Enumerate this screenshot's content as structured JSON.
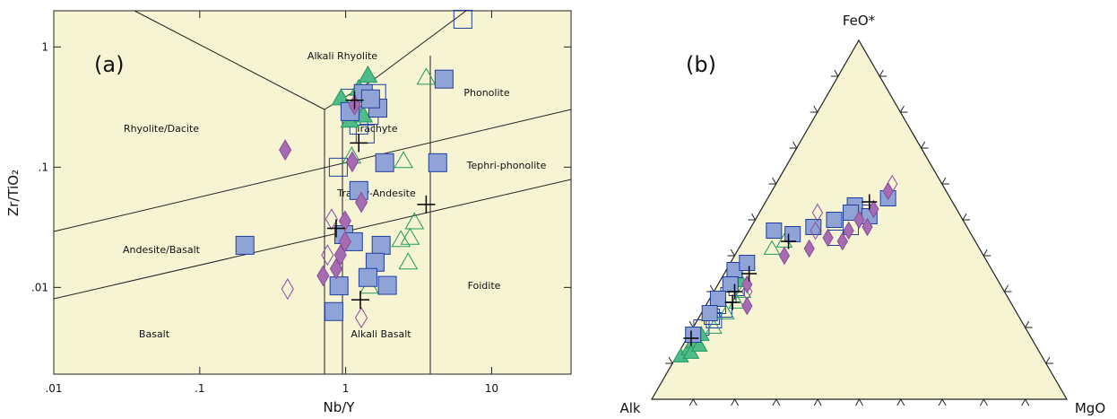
{
  "chart_data": [
    {
      "type": "scatter",
      "xlabel": "Nb/Y",
      "ylabel": "Zr/TiO₂",
      "log_x": true,
      "log_y": true,
      "background": "#f7f4d4",
      "xlim": [
        0.01,
        35
      ],
      "ylim": [
        0.0019,
        2
      ],
      "xticks": [
        {
          "value": 0.01,
          "label": ".01"
        },
        {
          "value": 0.1,
          "label": ".1"
        },
        1,
        10
      ],
      "yticks": [
        {
          "value": 0.01,
          "label": ".01"
        },
        {
          "value": 0.1,
          "label": ".1"
        },
        1
      ],
      "annotations": [
        "(a)",
        "Alkali Rhyolite",
        "Rhyolite/Dacite",
        "Phonolite",
        "Trachyte",
        "Tephri-phonolite",
        "Trachy-Andesite",
        "Andesite/Basalt",
        "Foidite",
        "Basalt",
        "Alkali Basalt"
      ],
      "series": [
        {
          "marker": "square",
          "filled": false,
          "color": "#1f3f9e",
          "x": [
            6.35,
            0.89,
            1.07,
            1.23,
            1.45,
            1.63,
            1.36
          ],
          "values": [
            1.7,
            0.1,
            0.375,
            0.224,
            0.27,
            0.41,
            0.189
          ]
        },
        {
          "marker": "triangle",
          "filled": false,
          "color": "#1f9a5a",
          "x": [
            3.56,
            2.49,
            2.96,
            2.76,
            2.39,
            2.68,
            1.1,
            1.45
          ],
          "values": [
            0.557,
            0.113,
            0.035,
            0.026,
            0.0249,
            0.0162,
            0.123,
            0.0102
          ]
        },
        {
          "marker": "triangle",
          "filled": true,
          "color": "#4fba8a",
          "x": [
            1.42,
            1.23,
            0.93,
            1.07,
            1.32
          ],
          "values": [
            0.58,
            0.45,
            0.375,
            0.245,
            0.27
          ]
        },
        {
          "marker": "square",
          "filled": true,
          "color": "#8fa3d6",
          "x": [
            4.72,
            4.27,
            1.85,
            1.23,
            0.204,
            0.97,
            1.13,
            1.75,
            1.59,
            1.42,
            0.9,
            1.93,
            0.83,
            1.32,
            1.07,
            1.66,
            1.48
          ],
          "values": [
            0.54,
            0.109,
            0.109,
            0.064,
            0.0224,
            0.0275,
            0.024,
            0.0224,
            0.0162,
            0.0121,
            0.0103,
            0.0104,
            0.0063,
            0.41,
            0.29,
            0.31,
            0.37
          ]
        },
        {
          "marker": "diamond",
          "filled": false,
          "color": "#8a4d9a",
          "x": [
            0.4,
            1.28,
            0.8,
            0.75
          ],
          "values": [
            0.0097,
            0.0056,
            0.037,
            0.0186
          ]
        },
        {
          "marker": "diamond",
          "filled": true,
          "color": "#a56cb1",
          "x": [
            0.385,
            1.11,
            1.28,
            0.99,
            0.99,
            0.92,
            0.86,
            0.7,
            1.15
          ],
          "values": [
            0.139,
            0.111,
            0.051,
            0.0357,
            0.024,
            0.0186,
            0.0143,
            0.0125,
            0.33
          ]
        },
        {
          "marker": "cross",
          "filled": false,
          "color": "#000000",
          "x": [
            1.23,
            3.56,
            0.86,
            1.26,
            1.15
          ],
          "values": [
            0.159,
            0.049,
            0.031,
            0.0079,
            0.36
          ]
        }
      ]
    },
    {
      "type": "ternary",
      "annotations": [
        "(b)"
      ],
      "top_label": "FeO*",
      "left_label": "Alk",
      "right_label": "MgO",
      "background": "#f7f4d4",
      "series": [
        {
          "marker": "square",
          "filled": false,
          "color": "#1f3f9e",
          "feo": [
            20,
            23,
            26,
            29,
            31,
            25,
            22,
            45,
            48,
            52
          ],
          "mgo": [
            2,
            3,
            3,
            4,
            5,
            5,
            4,
            22,
            24,
            25
          ],
          "alk": [
            78,
            74,
            71,
            67,
            64,
            70,
            74,
            33,
            28,
            23
          ]
        },
        {
          "marker": "triangle",
          "filled": false,
          "color": "#1f9a5a",
          "feo": [
            24,
            27,
            30,
            42,
            44,
            20
          ],
          "mgo": [
            6,
            7,
            7,
            8,
            10,
            5
          ],
          "alk": [
            70,
            66,
            63,
            50,
            46,
            75
          ]
        },
        {
          "marker": "triangle",
          "filled": true,
          "color": "#4fba8a",
          "feo": [
            12,
            14,
            16,
            13,
            18,
            15,
            33
          ],
          "mgo": [
            1,
            2,
            2,
            3,
            3,
            4,
            5
          ],
          "alk": [
            87,
            84,
            82,
            84,
            79,
            81,
            62
          ]
        },
        {
          "marker": "square",
          "filled": true,
          "color": "#8fa3d6",
          "feo": [
            18,
            36,
            38,
            47,
            46,
            48,
            50,
            54,
            56,
            51,
            52,
            32,
            28,
            24
          ],
          "mgo": [
            1,
            2,
            4,
            6,
            11,
            15,
            19,
            22,
            29,
            27,
            22,
            3,
            2,
            2
          ],
          "alk": [
            81,
            62,
            58,
            47,
            43,
            37,
            31,
            24,
            15,
            22,
            26,
            65,
            70,
            74
          ]
        },
        {
          "marker": "diamond",
          "filled": false,
          "color": "#8a4d9a",
          "feo": [
            60,
            52,
            47,
            30
          ],
          "mgo": [
            28,
            14,
            16,
            8
          ],
          "alk": [
            12,
            34,
            37,
            62
          ]
        },
        {
          "marker": "diamond",
          "filled": true,
          "color": "#a56cb1",
          "feo": [
            40,
            42,
            45,
            44,
            47,
            50,
            53,
            58,
            48,
            26,
            32
          ],
          "mgo": [
            12,
            17,
            20,
            24,
            24,
            25,
            27,
            28,
            28,
            10,
            7
          ],
          "alk": [
            48,
            41,
            35,
            32,
            29,
            25,
            20,
            14,
            24,
            64,
            61
          ]
        },
        {
          "marker": "cross",
          "filled": false,
          "color": "#000000",
          "feo": [
            17,
            35,
            27,
            30,
            55,
            44
          ],
          "mgo": [
            1,
            6,
            6,
            5,
            25,
            11
          ],
          "alk": [
            82,
            59,
            67,
            65,
            20,
            45
          ]
        }
      ]
    }
  ]
}
